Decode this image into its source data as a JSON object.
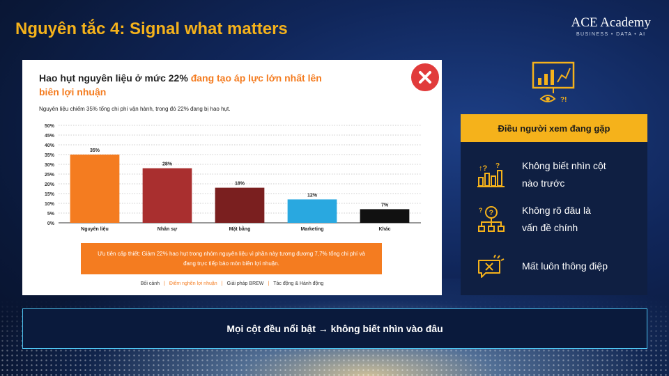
{
  "slide": {
    "title": "Nguyên tắc 4: Signal what matters",
    "brand_name": "ACE Academy",
    "brand_tagline": "BUSINESS • DATA • AI"
  },
  "card": {
    "title_part1": "Hao hụt nguyên liệu ở mức 22% ",
    "title_part2": "đang tạo áp lực lớn nhất lên biên lợi nhuận",
    "subtitle": "Nguyên liệu chiếm 35% tổng chi phí vận hành, trong đó 22% đang bị hao hụt.",
    "callout": "Ưu tiên cấp thiết: Giảm 22% hao hụt trong nhóm nguyên liệu vì phần này tương đương 7,7% tổng chi phí và đang trực tiếp bào mòn biên lợi nhuận.",
    "breadcrumb": [
      "Bối cảnh",
      "Điểm nghẽn lợi nhuận",
      "Giải pháp BREW",
      "Tác động & Hành động"
    ],
    "breadcrumb_active_index": 1,
    "badge_icon": "close-icon"
  },
  "chart_data": {
    "type": "bar",
    "categories": [
      "Nguyên liệu",
      "Nhân sự",
      "Mặt bằng",
      "Marketing",
      "Khác"
    ],
    "values": [
      35,
      28,
      18,
      12,
      7
    ],
    "data_labels": [
      "35%",
      "28%",
      "18%",
      "12%",
      "7%"
    ],
    "colors": [
      "#f47c20",
      "#a92f2f",
      "#7a1f1f",
      "#29a8e0",
      "#111111"
    ],
    "ylim": [
      0,
      50
    ],
    "yticks": [
      "0%",
      "5%",
      "10%",
      "15%",
      "20%",
      "25%",
      "30%",
      "35%",
      "40%",
      "45%",
      "50%"
    ],
    "grid": true,
    "title": "",
    "xlabel": "",
    "ylabel": ""
  },
  "panel": {
    "header": "Điều người xem đang gặp",
    "top_icon": "chart-presentation-icon",
    "issues": [
      {
        "text_line1": "Không biết nhìn cột",
        "text_line2": "nào trước",
        "icon": "confused-chart-icon"
      },
      {
        "text_line1": "Không rõ đâu là",
        "text_line2": "vấn đề chính",
        "icon": "question-hierarchy-icon"
      },
      {
        "text_line1": "Mất luôn thông điệp",
        "text_line2": "",
        "icon": "broken-message-icon"
      }
    ]
  },
  "banner": {
    "text": "Mọi cột đều nổi bật → không biết nhìn vào đâu"
  },
  "colors": {
    "accent": "#f5b21b",
    "orange": "#f47c20",
    "background": "#0a1838",
    "banner_border": "#4ec3f0"
  }
}
